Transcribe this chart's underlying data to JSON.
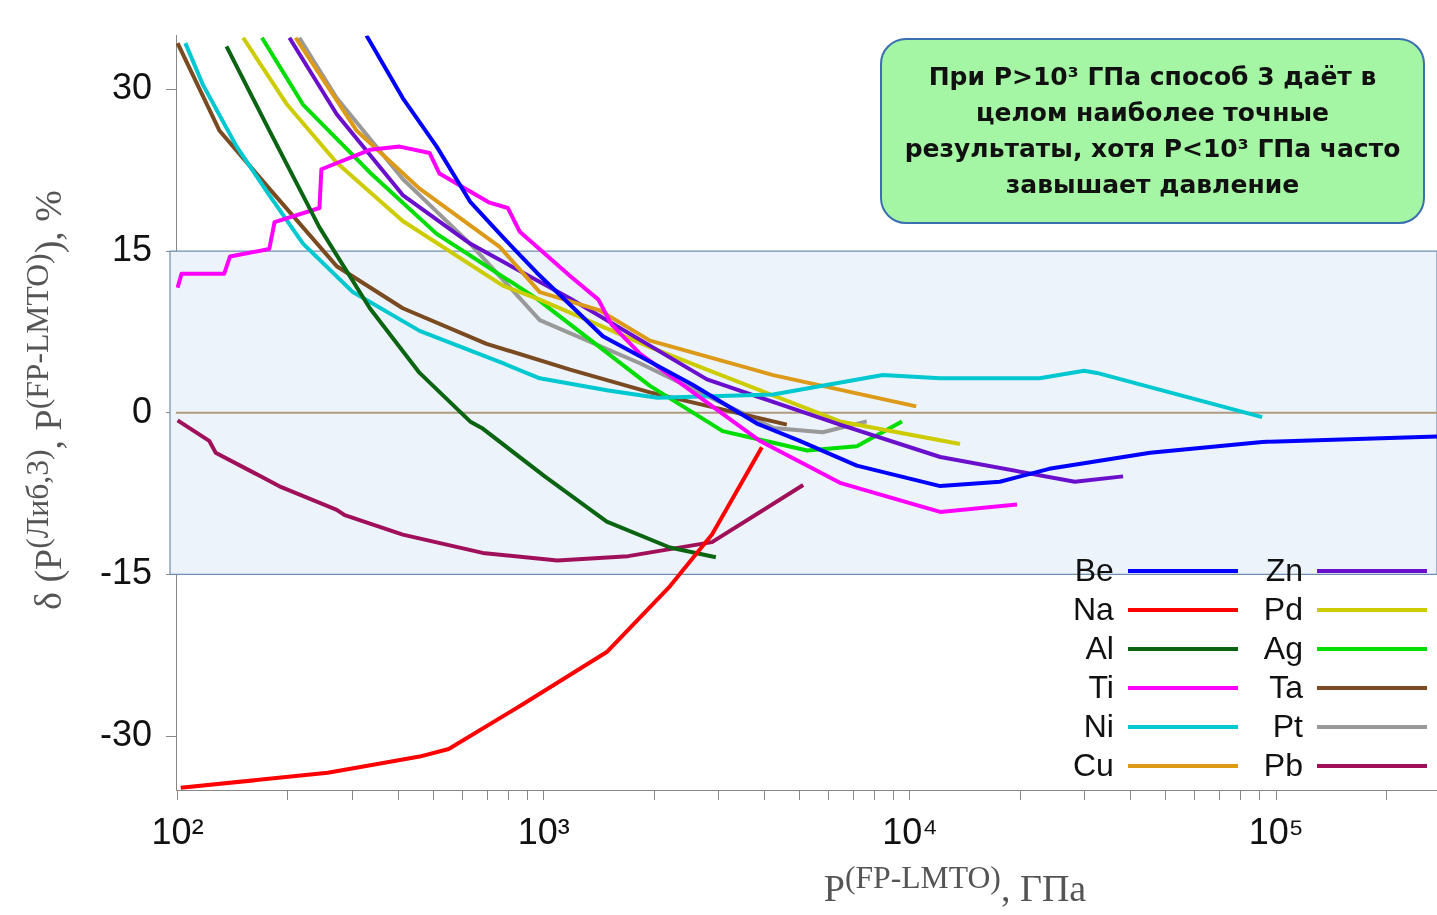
{
  "chart_data": {
    "type": "line",
    "xlabel": "P$^{(FP-LMTO)}$, ГПа",
    "ylabel": "δ (P$^{(Либ,3)}$, P$^{(FP-LMTO)}$), %",
    "annotations": [
      "При P>10³ ГПа способ 3 даёт в целом наиболее точные результаты, хотя P<10³ ГПа часто завышает давление"
    ],
    "log": "x",
    "xlim": [
      99,
      275000
    ],
    "ylim": [
      -35,
      35
    ],
    "xticks": [
      {
        "value": 100,
        "label": "10²"
      },
      {
        "value": 200,
        "label": null
      },
      {
        "value": 300,
        "label": null
      },
      {
        "value": 400,
        "label": null
      },
      {
        "value": 500,
        "label": null
      },
      {
        "value": 600,
        "label": null
      },
      {
        "value": 700,
        "label": null
      },
      {
        "value": 800,
        "label": null
      },
      {
        "value": 900,
        "label": null
      },
      {
        "value": 1000,
        "label": "10³"
      },
      {
        "value": 2000,
        "label": null
      },
      {
        "value": 3000,
        "label": null
      },
      {
        "value": 4000,
        "label": null
      },
      {
        "value": 5000,
        "label": null
      },
      {
        "value": 6000,
        "label": null
      },
      {
        "value": 7000,
        "label": null
      },
      {
        "value": 8000,
        "label": null
      },
      {
        "value": 9000,
        "label": null
      },
      {
        "value": 10000,
        "label": "10⁴"
      },
      {
        "value": 20000,
        "label": null
      },
      {
        "value": 30000,
        "label": null
      },
      {
        "value": 40000,
        "label": null
      },
      {
        "value": 50000,
        "label": null
      },
      {
        "value": 60000,
        "label": null
      },
      {
        "value": 70000,
        "label": null
      },
      {
        "value": 80000,
        "label": null
      },
      {
        "value": 90000,
        "label": null
      },
      {
        "value": 100000,
        "label": "10⁵"
      },
      {
        "value": 200000,
        "label": null
      }
    ],
    "yticks": [
      -30,
      -15,
      0,
      15,
      30
    ],
    "bands": [
      {
        "axis": "y",
        "from": -15,
        "to": 15,
        "color": "#ecf3fa"
      }
    ],
    "ref_lines": [
      {
        "axis": "y",
        "value": 0,
        "color": "#b09a80"
      }
    ],
    "legend": "bottom right",
    "series": [
      {
        "name": "Be",
        "color": "#0000ff",
        "x": [
          328,
          412,
          510,
          629,
          773,
          957,
          1450,
          2550,
          3820,
          5000,
          7160,
          12100,
          17600,
          24000,
          45300,
          91600,
          275000
        ],
        "values": [
          35,
          29.2,
          24.7,
          19.6,
          16.3,
          13,
          7.1,
          2.6,
          -1,
          -2.6,
          -4.9,
          -6.8,
          -6.4,
          -5.2,
          -3.7,
          -2.7,
          -2.2
        ]
      },
      {
        "name": "Na",
        "color": "#ff0000",
        "x": [
          102,
          257,
          458,
          550,
          881,
          1486,
          2210,
          2880,
          3940
        ],
        "values": [
          -34.8,
          -33.4,
          -31.9,
          -31.2,
          -27,
          -22.2,
          -16.1,
          -11.3,
          -3.2
        ]
      },
      {
        "name": "Al",
        "color": "#0a6412",
        "x": [
          136,
          178,
          244,
          335,
          458,
          629,
          677,
          1006,
          1486,
          2210,
          2950
        ],
        "values": [
          34,
          26.2,
          17.2,
          9.7,
          3.7,
          -0.8,
          -1.4,
          -5.9,
          -10.1,
          -12.5,
          -13.4
        ]
      },
      {
        "name": "Ti",
        "color": "#ff00ff",
        "x": [
          100,
          102.5,
          134,
          139,
          178,
          184,
          244,
          247,
          335,
          404,
          488,
          519,
          711,
          798,
          860,
          1180,
          1410,
          1530,
          1830,
          3890,
          6440,
          12100,
          19600
        ],
        "values": [
          11.6,
          12.9,
          12.9,
          14.5,
          15.2,
          17.7,
          19,
          22.6,
          24.4,
          24.7,
          24.1,
          22.2,
          19.5,
          19,
          16.8,
          12.7,
          10.5,
          8.2,
          5.5,
          -2.6,
          -6.5,
          -9.2,
          -8.5
        ]
      },
      {
        "name": "Ni",
        "color": "#00c8d0",
        "x": [
          105,
          117,
          145,
          178,
          220,
          301,
          458,
          773,
          975,
          1486,
          2040,
          4230,
          8430,
          12100,
          22600,
          29900,
          32400,
          91600
        ],
        "values": [
          34.3,
          30.5,
          24.7,
          20.2,
          15.7,
          11.2,
          7.6,
          4.6,
          3.2,
          2.1,
          1.4,
          1.7,
          3.5,
          3.2,
          3.2,
          3.9,
          3.7,
          -0.4
        ]
      },
      {
        "name": "Cu",
        "color": "#dd9a18",
        "x": [
          210,
          308,
          458,
          758,
          975,
          1422,
          1950,
          4230,
          10400
        ],
        "values": [
          34.8,
          26.2,
          20.8,
          15.4,
          11.2,
          9.5,
          6.7,
          3.5,
          0.6
        ]
      },
      {
        "name": "Zn",
        "color": "#6a10cc",
        "x": [
          202,
          272,
          412,
          629,
          1180,
          2790,
          6440,
          12100,
          28200,
          38200
        ],
        "values": [
          34.8,
          27.7,
          20.2,
          15.7,
          10.6,
          3.1,
          -1.1,
          -4.1,
          -6.4,
          -5.9
        ]
      },
      {
        "name": "Pd",
        "color": "#cccc00",
        "x": [
          151,
          199,
          272,
          412,
          773,
          975,
          1950,
          2790,
          6440,
          13700
        ],
        "values": [
          34.8,
          28.6,
          23.2,
          17.8,
          11.8,
          10.5,
          6.1,
          4,
          -0.8,
          -2.9
        ]
      },
      {
        "name": "Ag",
        "color": "#00dd00",
        "x": [
          170,
          220,
          335,
          510,
          957,
          1950,
          3080,
          5240,
          7160,
          9510
        ],
        "values": [
          34.8,
          28.6,
          22.3,
          16.6,
          10.6,
          2.5,
          -1.7,
          -3.5,
          -3.1,
          -0.8
        ]
      },
      {
        "name": "Ta",
        "color": "#7a4a20",
        "x": [
          100,
          130,
          178,
          272,
          412,
          698,
          1180,
          1950,
          4610
        ],
        "values": [
          34.3,
          26.2,
          20.8,
          13.6,
          9.7,
          6.4,
          4,
          1.9,
          -1.1
        ]
      },
      {
        "name": "Pt",
        "color": "#999999",
        "x": [
          215,
          272,
          412,
          629,
          975,
          1830,
          4230,
          5780,
          7620
        ],
        "values": [
          34.8,
          29.2,
          21.7,
          15.7,
          8.6,
          4.6,
          -1.4,
          -1.8,
          -0.8
        ]
      },
      {
        "name": "Pb",
        "color": "#a0105a",
        "x": [
          100,
          122,
          127,
          192,
          272,
          286,
          412,
          681,
          1090,
          1700,
          2880,
          5110
        ],
        "values": [
          -0.7,
          -2.6,
          -3.7,
          -6.9,
          -9,
          -9.5,
          -11.3,
          -13,
          -13.7,
          -13.3,
          -12,
          -6.7
        ]
      }
    ]
  }
}
